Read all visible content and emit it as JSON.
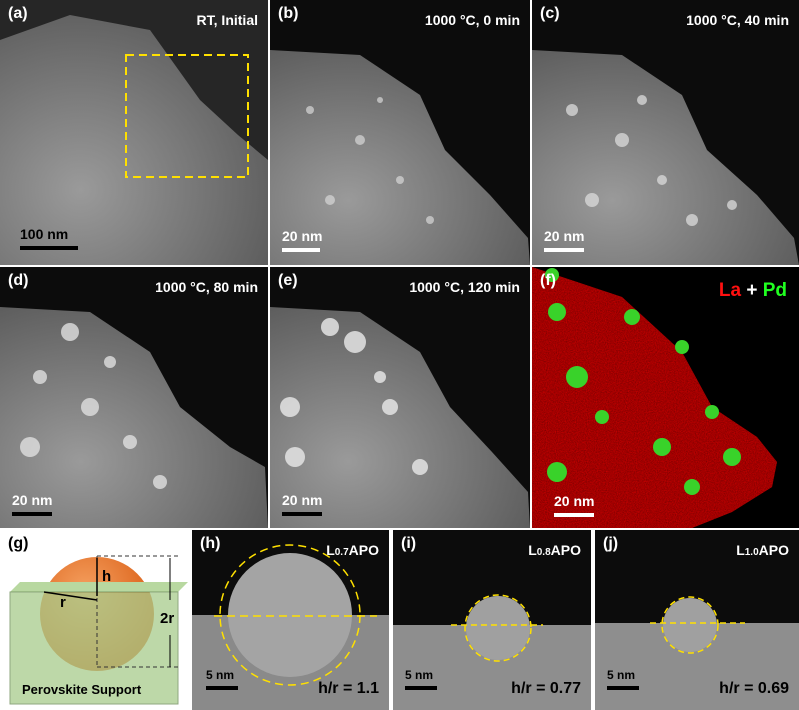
{
  "panels": [
    {
      "label": "(a)",
      "caption": "RT, Initial",
      "scale_bar": "100 nm"
    },
    {
      "label": "(b)",
      "caption": "1000 °C, 0 min",
      "scale_bar": "20 nm"
    },
    {
      "label": "(c)",
      "caption": "1000 °C, 40 min",
      "scale_bar": "20 nm"
    },
    {
      "label": "(d)",
      "caption": "1000 °C, 80 min",
      "scale_bar": "20 nm"
    },
    {
      "label": "(e)",
      "caption": "1000 °C, 120 min",
      "scale_bar": "20 nm"
    },
    {
      "label": "(f)",
      "legend": [
        "La",
        "+",
        "Pd"
      ],
      "scale_bar": "20 nm"
    }
  ],
  "schematic": {
    "label": "(g)",
    "h": "h",
    "r": "r",
    "two_r": "2r",
    "support": "Perovskite Support"
  },
  "hrtem": [
    {
      "label": "(h)",
      "sample": [
        "L",
        "0.7",
        "APO"
      ],
      "scale_bar": "5 nm",
      "ratio": "h/r = 1.1"
    },
    {
      "label": "(i)",
      "sample": [
        "L",
        "0.8",
        "APO"
      ],
      "scale_bar": "5 nm",
      "ratio": "h/r = 0.77"
    },
    {
      "label": "(j)",
      "sample": [
        "L",
        "1.0",
        "APO"
      ],
      "scale_bar": "5 nm",
      "ratio": "h/r = 0.69"
    }
  ]
}
